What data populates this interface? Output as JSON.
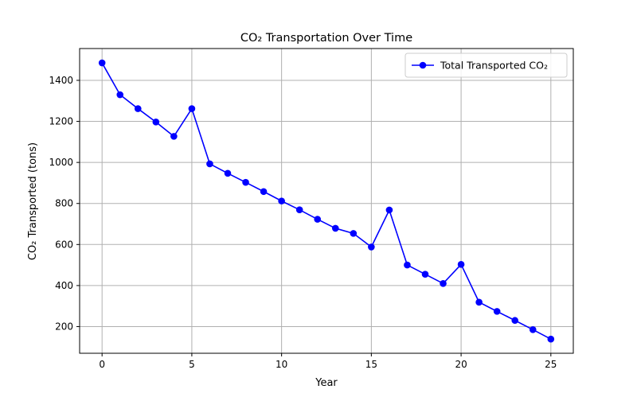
{
  "chart_data": {
    "type": "line",
    "title": "CO₂ Transportation Over Time",
    "xlabel": "Year",
    "ylabel": "CO₂ Transported (tons)",
    "xlim": [
      -1.25,
      26.25
    ],
    "ylim": [
      70,
      1555
    ],
    "xticks": [
      0,
      5,
      10,
      15,
      20,
      25
    ],
    "yticks": [
      200,
      400,
      600,
      800,
      1000,
      1200,
      1400
    ],
    "grid": true,
    "legend": {
      "position": "top-right"
    },
    "series": [
      {
        "name": "Total Transported CO₂",
        "color": "#0000ff",
        "marker": "circle",
        "x": [
          0,
          1,
          2,
          3,
          4,
          5,
          6,
          7,
          8,
          9,
          10,
          11,
          12,
          13,
          14,
          15,
          16,
          17,
          18,
          19,
          20,
          21,
          22,
          23,
          24,
          25
        ],
        "y": [
          1485,
          1330,
          1262,
          1197,
          1127,
          1262,
          993,
          947,
          903,
          858,
          812,
          769,
          723,
          679,
          654,
          588,
          768,
          500,
          455,
          410,
          503,
          319,
          274,
          230,
          185,
          139
        ]
      }
    ]
  }
}
